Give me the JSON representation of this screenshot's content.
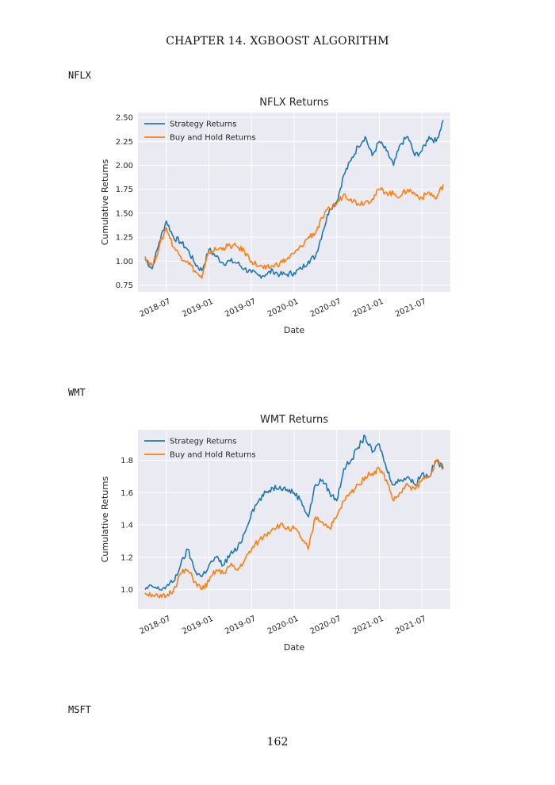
{
  "page": {
    "header": "CHAPTER 14.  XGBOOST ALGORITHM",
    "page_number": "162"
  },
  "sections": [
    {
      "label": "NFLX"
    },
    {
      "label": "WMT"
    },
    {
      "label": "MSFT"
    }
  ],
  "colors": {
    "strategy": "#1f77b4",
    "buy_hold": "#ff7f0e",
    "plot_bg": "#eaeaf2",
    "grid": "#ffffff"
  },
  "chart_data": [
    {
      "type": "line",
      "title": "NFLX Returns",
      "xlabel": "Date",
      "ylabel": "Cumulative Returns",
      "x_ticks": [
        "2018-07",
        "2019-01",
        "2019-07",
        "2020-01",
        "2020-07",
        "2021-01",
        "2021-07"
      ],
      "y_ticks": [
        "0.75",
        "1.00",
        "1.25",
        "1.50",
        "1.75",
        "2.00",
        "2.25",
        "2.50"
      ],
      "x_range": [
        "2018-03",
        "2021-11"
      ],
      "ylim": [
        0.68,
        2.55
      ],
      "grid": true,
      "legend_position": "top-left",
      "x": [
        "2018-04",
        "2018-05",
        "2018-06",
        "2018-07",
        "2018-08",
        "2018-09",
        "2018-10",
        "2018-11",
        "2018-12",
        "2019-01",
        "2019-02",
        "2019-03",
        "2019-04",
        "2019-05",
        "2019-06",
        "2019-07",
        "2019-08",
        "2019-09",
        "2019-10",
        "2019-11",
        "2019-12",
        "2020-01",
        "2020-02",
        "2020-03",
        "2020-04",
        "2020-05",
        "2020-06",
        "2020-07",
        "2020-08",
        "2020-09",
        "2020-10",
        "2020-11",
        "2020-12",
        "2021-01",
        "2021-02",
        "2021-03",
        "2021-04",
        "2021-05",
        "2021-06",
        "2021-07",
        "2021-08",
        "2021-09",
        "2021-10"
      ],
      "series": [
        {
          "name": "Strategy Returns",
          "values": [
            1.02,
            0.92,
            1.2,
            1.42,
            1.25,
            1.2,
            1.12,
            0.98,
            0.9,
            1.12,
            1.05,
            0.98,
            1.0,
            0.98,
            0.92,
            0.88,
            0.85,
            0.86,
            0.9,
            0.86,
            0.86,
            0.88,
            0.92,
            1.0,
            1.05,
            1.3,
            1.55,
            1.62,
            1.9,
            2.05,
            2.2,
            2.3,
            2.1,
            2.25,
            2.15,
            2.0,
            2.22,
            2.3,
            2.1,
            2.15,
            2.3,
            2.25,
            2.47
          ]
        },
        {
          "name": "Buy and Hold Returns",
          "values": [
            1.05,
            0.95,
            1.15,
            1.35,
            1.15,
            1.05,
            1.0,
            0.9,
            0.82,
            1.1,
            1.12,
            1.14,
            1.16,
            1.15,
            1.1,
            1.0,
            0.95,
            0.92,
            0.95,
            0.98,
            1.02,
            1.08,
            1.15,
            1.25,
            1.3,
            1.45,
            1.55,
            1.6,
            1.7,
            1.65,
            1.6,
            1.62,
            1.65,
            1.75,
            1.72,
            1.7,
            1.68,
            1.75,
            1.7,
            1.66,
            1.72,
            1.65,
            1.8
          ]
        }
      ]
    },
    {
      "type": "line",
      "title": "WMT Returns",
      "xlabel": "Date",
      "ylabel": "Cumulative Returns",
      "x_ticks": [
        "2018-07",
        "2019-01",
        "2019-07",
        "2020-01",
        "2020-07",
        "2021-01",
        "2021-07"
      ],
      "y_ticks": [
        "1.0",
        "1.2",
        "1.4",
        "1.6",
        "1.8"
      ],
      "x_range": [
        "2018-03",
        "2021-11"
      ],
      "ylim": [
        0.88,
        1.99
      ],
      "grid": true,
      "legend_position": "top-left",
      "x": [
        "2018-04",
        "2018-05",
        "2018-06",
        "2018-07",
        "2018-08",
        "2018-09",
        "2018-10",
        "2018-11",
        "2018-12",
        "2019-01",
        "2019-02",
        "2019-03",
        "2019-04",
        "2019-05",
        "2019-06",
        "2019-07",
        "2019-08",
        "2019-09",
        "2019-10",
        "2019-11",
        "2019-12",
        "2020-01",
        "2020-02",
        "2020-03",
        "2020-04",
        "2020-05",
        "2020-06",
        "2020-07",
        "2020-08",
        "2020-09",
        "2020-10",
        "2020-11",
        "2020-12",
        "2021-01",
        "2021-02",
        "2021-03",
        "2021-04",
        "2021-05",
        "2021-06",
        "2021-07",
        "2021-08",
        "2021-09",
        "2021-10"
      ],
      "series": [
        {
          "name": "Strategy Returns",
          "values": [
            1.0,
            1.02,
            1.0,
            1.02,
            1.05,
            1.15,
            1.25,
            1.12,
            1.08,
            1.15,
            1.2,
            1.15,
            1.22,
            1.25,
            1.35,
            1.48,
            1.55,
            1.6,
            1.63,
            1.64,
            1.62,
            1.6,
            1.55,
            1.45,
            1.65,
            1.68,
            1.6,
            1.55,
            1.75,
            1.8,
            1.88,
            1.95,
            1.85,
            1.9,
            1.75,
            1.65,
            1.68,
            1.7,
            1.65,
            1.72,
            1.7,
            1.8,
            1.75
          ]
        },
        {
          "name": "Buy and Hold Returns",
          "values": [
            0.98,
            0.97,
            0.95,
            0.96,
            1.0,
            1.1,
            1.12,
            1.05,
            1.0,
            1.05,
            1.12,
            1.1,
            1.15,
            1.12,
            1.18,
            1.25,
            1.3,
            1.34,
            1.38,
            1.4,
            1.38,
            1.38,
            1.32,
            1.25,
            1.45,
            1.42,
            1.38,
            1.45,
            1.55,
            1.6,
            1.65,
            1.7,
            1.72,
            1.75,
            1.68,
            1.55,
            1.6,
            1.65,
            1.62,
            1.68,
            1.7,
            1.8,
            1.75
          ]
        }
      ]
    }
  ]
}
